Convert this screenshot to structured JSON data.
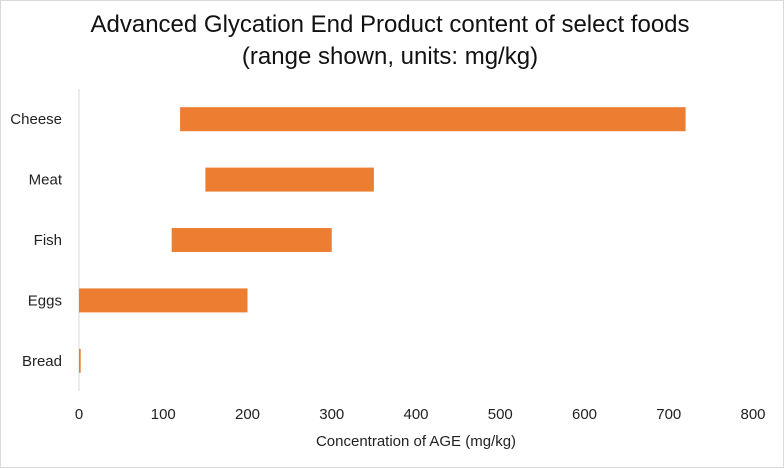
{
  "chart_data": {
    "type": "bar",
    "orientation": "horizontal",
    "subtype": "floating-range",
    "title": "Advanced Glycation End Product content of select foods",
    "subtitle": "(range shown, units: mg/kg)",
    "xlabel": "Concentration of AGE (mg/kg)",
    "ylabel": "",
    "xlim": [
      0,
      800
    ],
    "xticks": [
      0,
      100,
      200,
      300,
      400,
      500,
      600,
      700,
      800
    ],
    "grid": false,
    "legend": "none",
    "bar_color": "#ED7D31",
    "categories": [
      "Cheese",
      "Meat",
      "Fish",
      "Eggs",
      "Bread"
    ],
    "series": [
      {
        "ranges": [
          [
            120,
            720
          ],
          [
            150,
            350
          ],
          [
            110,
            300
          ],
          [
            0,
            200
          ],
          [
            0,
            2
          ]
        ]
      }
    ]
  }
}
